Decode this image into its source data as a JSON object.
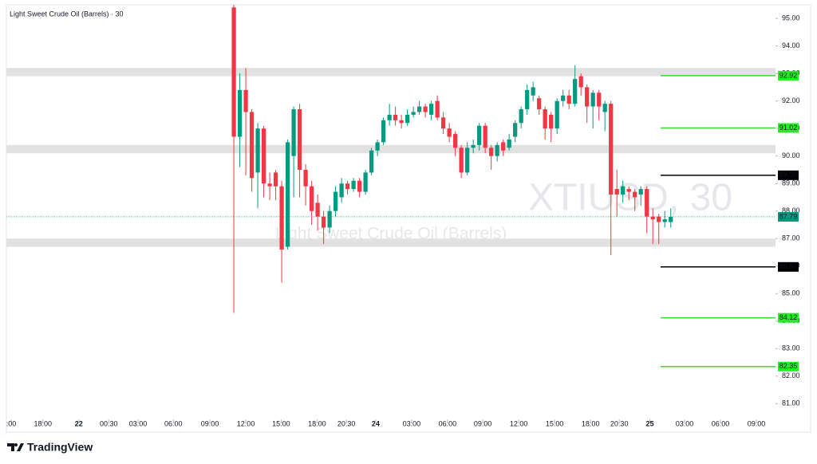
{
  "chart_data": {
    "type": "candlestick",
    "title": "Light Sweet Crude Oil (Barrels) · 30",
    "watermark": "XTIUSD, 30",
    "watermark_subtitle": "Light Sweet Crude Oil (Barrels)",
    "brand": "TradingView",
    "up_color": "#089981",
    "down_color": "#f23645",
    "x": [
      38,
      39,
      40,
      41,
      42,
      43,
      44,
      45,
      46,
      47,
      48,
      49,
      50,
      51,
      52,
      53,
      54,
      55,
      56,
      57,
      58,
      59,
      60,
      61,
      62,
      63,
      64,
      65,
      66,
      67,
      68,
      69,
      70,
      71,
      72,
      73,
      74,
      75,
      76,
      77,
      78,
      79,
      80,
      81,
      82,
      83,
      84,
      85,
      86,
      87,
      88,
      89,
      90,
      91,
      92,
      93,
      94,
      95,
      96,
      97,
      98,
      99,
      100,
      101,
      102,
      103,
      104,
      105,
      106,
      107,
      108,
      109,
      110,
      111
    ],
    "open": [
      95.4,
      90.7,
      92.4,
      91.6,
      89.4,
      91.0,
      89.0,
      89.4,
      88.9,
      86.7,
      90.0,
      91.7,
      89.5,
      88.9,
      88.3,
      87.8,
      87.4,
      88.0,
      88.5,
      89.0,
      88.8,
      89.1,
      88.7,
      89.4,
      90.2,
      90.5,
      91.3,
      91.5,
      91.3,
      91.2,
      91.5,
      91.6,
      91.8,
      91.5,
      92.0,
      91.4,
      91.0,
      90.8,
      90.3,
      89.4,
      90.3,
      90.4,
      91.1,
      90.3,
      90.0,
      90.5,
      90.3,
      90.7,
      91.2,
      91.7,
      92.2,
      92.1,
      91.7,
      91.5,
      91.0,
      92.0,
      92.2,
      91.9,
      92.9,
      92.5,
      91.8,
      92.3,
      91.6,
      91.9,
      88.8,
      88.6,
      88.8,
      88.7,
      88.6,
      88.8,
      87.8,
      87.8,
      87.6,
      87.6
    ],
    "high": [
      95.5,
      93.0,
      93.2,
      91.7,
      91.2,
      91.1,
      89.4,
      89.5,
      89.1,
      90.6,
      91.8,
      91.9,
      89.7,
      89.1,
      88.6,
      88.0,
      88.2,
      88.9,
      89.2,
      89.1,
      89.2,
      89.2,
      89.5,
      90.3,
      90.6,
      91.4,
      91.9,
      91.8,
      91.5,
      91.7,
      91.8,
      92.0,
      91.9,
      92.0,
      92.2,
      91.6,
      91.2,
      90.9,
      90.4,
      90.5,
      90.6,
      91.2,
      91.2,
      90.4,
      90.5,
      90.6,
      90.8,
      91.3,
      91.8,
      92.6,
      92.7,
      92.2,
      91.8,
      91.6,
      92.1,
      92.4,
      92.4,
      93.3,
      93.0,
      92.6,
      92.4,
      92.4,
      92.0,
      92.0,
      89.5,
      89.1,
      88.9,
      88.8,
      88.9,
      88.9,
      88.1,
      87.9,
      88.0,
      88.1
    ],
    "low": [
      84.3,
      89.6,
      89.3,
      88.7,
      88.1,
      88.5,
      88.4,
      88.4,
      85.4,
      86.6,
      88.5,
      88.5,
      88.2,
      87.5,
      87.3,
      86.8,
      87.2,
      87.8,
      88.3,
      88.6,
      88.7,
      88.5,
      88.6,
      89.3,
      90.0,
      90.4,
      91.1,
      91.1,
      91.0,
      91.1,
      91.4,
      91.5,
      91.4,
      91.3,
      91.3,
      90.8,
      90.5,
      90.0,
      89.2,
      89.3,
      90.1,
      90.2,
      90.1,
      89.5,
      89.8,
      90.0,
      90.2,
      90.5,
      91.0,
      91.5,
      92.0,
      91.5,
      90.6,
      90.5,
      90.8,
      91.8,
      91.7,
      91.8,
      92.2,
      91.2,
      91.0,
      91.3,
      90.9,
      86.4,
      87.8,
      88.3,
      88.4,
      88.0,
      88.2,
      87.2,
      86.8,
      86.8,
      87.4,
      87.4
    ],
    "close": [
      90.7,
      92.4,
      91.6,
      89.2,
      91.0,
      89.0,
      88.9,
      88.9,
      86.6,
      90.5,
      91.7,
      89.5,
      88.9,
      88.0,
      87.8,
      87.4,
      88.0,
      88.7,
      89.0,
      88.8,
      89.1,
      88.7,
      89.4,
      90.2,
      90.5,
      91.3,
      91.5,
      91.3,
      91.2,
      91.5,
      91.6,
      91.8,
      91.6,
      91.9,
      91.4,
      91.0,
      90.7,
      90.3,
      89.4,
      90.3,
      90.4,
      91.1,
      90.3,
      90.0,
      90.4,
      90.2,
      90.6,
      91.2,
      91.7,
      92.4,
      92.5,
      91.7,
      91.0,
      91.0,
      92.0,
      92.2,
      91.9,
      92.8,
      92.5,
      91.8,
      92.3,
      91.8,
      91.9,
      88.6,
      88.6,
      88.9,
      88.7,
      88.5,
      88.8,
      87.8,
      87.7,
      87.6,
      87.7,
      87.79
    ],
    "zones": [
      {
        "from": 92.9,
        "to": 93.2
      },
      {
        "from": 90.1,
        "to": 90.4
      },
      {
        "from": 86.7,
        "to": 87.0
      }
    ],
    "levels": [
      {
        "value": 92.92,
        "label": "92.92",
        "color": "#33dd33"
      },
      {
        "value": 91.02,
        "label": "91.02",
        "color": "#33dd33"
      },
      {
        "value": 89.3,
        "label": "89.30",
        "color": "#000000"
      },
      {
        "value": 85.97,
        "label": "85.97",
        "color": "#000000"
      },
      {
        "value": 84.12,
        "label": "84.12",
        "color": "#33dd33"
      },
      {
        "value": 82.35,
        "label": "82.35",
        "color": "#33dd33"
      }
    ],
    "last_price": 87.79,
    "last_color": "#089981",
    "xlim": [
      0,
      128.5
    ],
    "xticks": [
      {
        "value": 0.8,
        "label": ":00"
      },
      {
        "value": 6.1,
        "label": "18:00"
      },
      {
        "value": 12.1,
        "label": "22"
      },
      {
        "value": 17.1,
        "label": "00:30"
      },
      {
        "value": 22.0,
        "label": "03:00"
      },
      {
        "value": 27.9,
        "label": "06:00"
      },
      {
        "value": 34.0,
        "label": "09:00"
      },
      {
        "value": 40.0,
        "label": "12:00"
      },
      {
        "value": 45.9,
        "label": "15:00"
      },
      {
        "value": 51.9,
        "label": "18:00"
      },
      {
        "value": 56.8,
        "label": "20:30"
      },
      {
        "value": 61.7,
        "label": "24"
      },
      {
        "value": 67.7,
        "label": "03:00"
      },
      {
        "value": 73.7,
        "label": "06:00"
      },
      {
        "value": 79.6,
        "label": "09:00"
      },
      {
        "value": 85.6,
        "label": "12:00"
      },
      {
        "value": 91.6,
        "label": "15:00"
      },
      {
        "value": 97.6,
        "label": "18:00"
      },
      {
        "value": 102.4,
        "label": "20:30"
      },
      {
        "value": 107.5,
        "label": "25"
      },
      {
        "value": 113.3,
        "label": "03:00"
      },
      {
        "value": 119.3,
        "label": "06:00"
      },
      {
        "value": 125.3,
        "label": "09:00"
      }
    ],
    "ylim": [
      80.43,
      95.67
    ],
    "yticks": [
      {
        "value": 81,
        "label": "81.00"
      },
      {
        "value": 82,
        "label": "82.00"
      },
      {
        "value": 83,
        "label": "83.00"
      },
      {
        "value": 84,
        "label": "84.00"
      },
      {
        "value": 85,
        "label": "85.00"
      },
      {
        "value": 86,
        "label": "86.00"
      },
      {
        "value": 87,
        "label": "87.00"
      },
      {
        "value": 88,
        "label": "88.00"
      },
      {
        "value": 89,
        "label": "89.00"
      },
      {
        "value": 90,
        "label": "90.00"
      },
      {
        "value": 91,
        "label": "91.00"
      },
      {
        "value": 92,
        "label": "92.00"
      },
      {
        "value": 93,
        "label": "93.00"
      },
      {
        "value": 94,
        "label": "94.00"
      },
      {
        "value": 95,
        "label": "95.00"
      }
    ]
  }
}
